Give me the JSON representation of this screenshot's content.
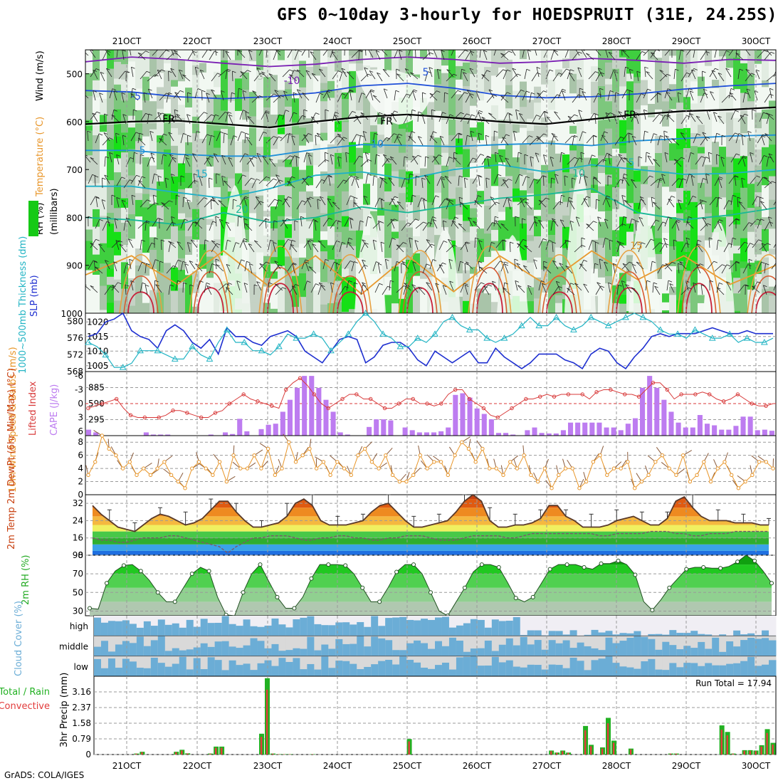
{
  "title": "GFS 0~10day 3-hourly for HOEDSPRUIT (31E, 24.25S)",
  "footer": "GrADS: COLA/IGES",
  "colors": {
    "rh_green": "#16c916",
    "bright_green": "#00e600",
    "pale_green": "#e8f3e8",
    "grey_green": "#c3cfc3",
    "slp_line": "#1e2fd0",
    "thickness_line": "#22b4c4",
    "lifted_index": "#d83a3a",
    "cape_bar": "#bd7cf0",
    "wind_speed": "#e8962a",
    "cloud_blue": "#6badd6",
    "cloud_grey": "#d9d9d9",
    "cloud_pale": "#f0eef4",
    "precip_total": "#22b122",
    "precip_convective": "#e23b3b"
  },
  "chart_data": [
    {
      "type": "heatmap",
      "name": "upper_air_cross_section",
      "xlabels": [
        "21OCT",
        "22OCT",
        "23OCT",
        "24OCT",
        "25OCT",
        "26OCT",
        "27OCT",
        "28OCT",
        "29OCT",
        "30OCT"
      ],
      "ylabel": "(millibars)",
      "ylabels": [
        "500",
        "600",
        "700",
        "800",
        "900",
        "1000"
      ],
      "ylim": [
        450,
        1000
      ],
      "side_labels": [
        "RH (%)",
        "Temperature (°C)",
        "Wind (m/s)"
      ],
      "contour_labels": [
        "-10",
        "5",
        "-5",
        "5",
        "FR",
        "FR",
        "FR",
        "5",
        "10",
        "15",
        "10",
        "5",
        "20",
        "15"
      ],
      "isotherms": [
        {
          "label": "-10",
          "color": "#7a1fb3",
          "p": [
            475,
            465,
            470,
            478,
            485,
            480,
            470,
            465,
            470,
            478,
            475,
            468,
            472,
            478,
            470,
            472
          ]
        },
        {
          "label": "-5",
          "color": "#1f4fd8",
          "p": [
            535,
            538,
            548,
            552,
            548,
            540,
            525,
            520,
            530,
            545,
            550,
            548,
            542,
            532,
            525,
            520
          ]
        },
        {
          "label": "FR",
          "color": "#000000",
          "p": [
            605,
            600,
            598,
            605,
            612,
            600,
            590,
            585,
            592,
            600,
            605,
            595,
            585,
            578,
            575,
            570
          ]
        },
        {
          "label": "5",
          "color": "#1e8fd8",
          "p": [
            660,
            660,
            668,
            672,
            672,
            658,
            648,
            650,
            652,
            648,
            645,
            650,
            640,
            635,
            630,
            628
          ]
        },
        {
          "label": "10",
          "color": "#1eb0c8",
          "p": [
            735,
            735,
            748,
            760,
            740,
            712,
            705,
            720,
            700,
            690,
            705,
            690,
            700,
            710,
            708,
            700
          ]
        },
        {
          "label": "15",
          "color": "#18b896",
          "p": [
            800,
            805,
            815,
            790,
            810,
            800,
            778,
            790,
            775,
            760,
            752,
            740,
            790,
            805,
            795,
            780
          ]
        },
        {
          "label": "20",
          "color": "#e89a30",
          "p": [
            920,
            880,
            940,
            870,
            945,
            880,
            960,
            880,
            955,
            880,
            940,
            870,
            930,
            880,
            940,
            900
          ]
        }
      ]
    },
    {
      "type": "line",
      "name": "slp_and_thickness",
      "y_left_label": "1000~500mb Thickness (dm)",
      "y_left_ticks": [
        "568",
        "572",
        "576",
        "580"
      ],
      "y_left_range": [
        568,
        582
      ],
      "y_right_label": "SLP (mb)",
      "y_right_ticks": [
        "1005",
        "1010",
        "1015",
        "1020"
      ],
      "y_right_range": [
        1003,
        1023
      ],
      "series": [
        {
          "name": "SLP (mb)",
          "values": [
            1015,
            1016,
            1020,
            1021,
            1023,
            1017,
            1015,
            1014,
            1011,
            1017,
            1019,
            1017,
            1013,
            1011,
            1014,
            1009,
            1018,
            1015,
            1015,
            1013,
            1012,
            1015,
            1016,
            1017,
            1015,
            1010,
            1008,
            1006,
            1010,
            1014,
            1015,
            1014,
            1006,
            1008,
            1012,
            1013,
            1013,
            1011,
            1007,
            1005,
            1010,
            1008,
            1006,
            1008,
            1010,
            1006,
            1006,
            1011,
            1008,
            1006,
            1004,
            1006,
            1009,
            1009,
            1009,
            1007,
            1006,
            1004,
            1009,
            1011,
            1010,
            1006,
            1004,
            1008,
            1011,
            1015,
            1016,
            1015,
            1016,
            1016,
            1016,
            1017,
            1018,
            1017,
            1016,
            1016,
            1017,
            1016,
            1016,
            1016
          ]
        },
        {
          "name": "1000~500mb Thickness (dm)",
          "values": [
            575,
            574,
            572,
            569,
            569,
            570,
            573,
            573,
            573,
            572,
            571,
            571,
            574,
            572,
            571,
            575,
            578,
            575,
            575,
            573,
            573,
            572,
            574,
            577,
            576,
            576,
            577,
            576,
            573,
            575,
            577,
            580,
            582,
            580,
            577,
            576,
            574,
            574,
            576,
            575,
            577,
            580,
            581,
            579,
            578,
            578,
            576,
            575,
            576,
            577,
            579,
            581,
            579,
            579,
            581,
            579,
            578,
            579,
            581,
            580,
            579,
            580,
            581,
            582,
            581,
            580,
            578,
            577,
            577,
            576,
            578,
            577,
            576,
            576,
            577,
            575,
            576,
            575,
            575,
            576
          ]
        }
      ]
    },
    {
      "type": "bar",
      "name": "cape_and_lifted_index",
      "y_left_label": "Lifted Index",
      "y_left_ticks": [
        "-6",
        "-3",
        "0",
        "3",
        "6"
      ],
      "y_right_label": "CAPE (J/kg)",
      "y_right_ticks": [
        "295",
        "590",
        "885"
      ],
      "y_right_range": [
        0,
        1180
      ],
      "cape": [
        110,
        60,
        0,
        0,
        0,
        0,
        0,
        0,
        60,
        20,
        20,
        20,
        0,
        0,
        0,
        0,
        0,
        20,
        0,
        60,
        30,
        310,
        80,
        0,
        120,
        200,
        220,
        440,
        660,
        880,
        1100,
        1100,
        880,
        660,
        440,
        60,
        20,
        0,
        0,
        160,
        300,
        300,
        280,
        0,
        150,
        100,
        60,
        60,
        60,
        80,
        150,
        750,
        780,
        700,
        500,
        400,
        300,
        50,
        50,
        20,
        0,
        100,
        150,
        50,
        40,
        40,
        100,
        240,
        240,
        240,
        240,
        240,
        150,
        150,
        100,
        220,
        320,
        880,
        1100,
        880,
        660,
        440,
        240,
        150,
        150,
        380,
        220,
        190,
        110,
        110,
        180,
        350,
        350,
        100,
        110,
        90
      ]
    },
    {
      "type": "line",
      "name": "10m_wind",
      "ylabel": "10m Wind Speed & Barbs (m/s)",
      "ylim": [
        0,
        9
      ],
      "y_ticks": [
        "0",
        "2",
        "4",
        "6",
        "8"
      ],
      "values": [
        3,
        5,
        9,
        7,
        6,
        4,
        5,
        3,
        4,
        3,
        4,
        5,
        3,
        2,
        1,
        4,
        5,
        4,
        3,
        5,
        2,
        6,
        4,
        4,
        6,
        4,
        7,
        3,
        4,
        8,
        5,
        6,
        7,
        4,
        5,
        3,
        5,
        4,
        3,
        6,
        7,
        5,
        4,
        6,
        3,
        2,
        2,
        3,
        6,
        4,
        5,
        5,
        3,
        6,
        8,
        7,
        5,
        7,
        4,
        4,
        3,
        5,
        4,
        6,
        3,
        2,
        4,
        1,
        3,
        4,
        4,
        1,
        2,
        5,
        6,
        3,
        4,
        4,
        5,
        1,
        2,
        3,
        5,
        6,
        4,
        3,
        6,
        2,
        3,
        5,
        2,
        4,
        5,
        3,
        1,
        2,
        3,
        5,
        5,
        4
      ]
    },
    {
      "type": "area",
      "name": "2m_temperature",
      "ylabel": "2m Temp 2m DewPt (6hr Min/Max) (°C)",
      "ylim": [
        8,
        36
      ],
      "y_ticks": [
        "8",
        "16",
        "24",
        "32"
      ],
      "series": [
        {
          "name": "2m Temp",
          "values": [
            31,
            27,
            24,
            21,
            20,
            19,
            22,
            25,
            27,
            26,
            24,
            22,
            23,
            25,
            29,
            33,
            33,
            28,
            24,
            21,
            21,
            22,
            23,
            26,
            32,
            34,
            31,
            24,
            22,
            22,
            22,
            23,
            24,
            28,
            31,
            32,
            28,
            24,
            21,
            21,
            22,
            23,
            24,
            28,
            33,
            36,
            33,
            24,
            21,
            21,
            22,
            22,
            23,
            25,
            31,
            31,
            26,
            24,
            21,
            21,
            21,
            22,
            24,
            25,
            26,
            24,
            22,
            22,
            25,
            33,
            35,
            30,
            26,
            24,
            24,
            24,
            23,
            23,
            23,
            22,
            22
          ]
        },
        {
          "name": "2m DewPt",
          "values": [
            16,
            15,
            15,
            14,
            14,
            15,
            16,
            16,
            16,
            17,
            17,
            16,
            15,
            14,
            13,
            12,
            9,
            12,
            14,
            16,
            16,
            17,
            17,
            17,
            16,
            15,
            15,
            16,
            16,
            17,
            17,
            16,
            16,
            15,
            15,
            16,
            16,
            17,
            17,
            17,
            16,
            15,
            15,
            15,
            16,
            17,
            17,
            17,
            17,
            16,
            16,
            17,
            18,
            18,
            18,
            18,
            18,
            18,
            18,
            18,
            17,
            17,
            18,
            18,
            18,
            18,
            19,
            19,
            19,
            18,
            18,
            17,
            17,
            18,
            18,
            18,
            19,
            19,
            19,
            19,
            19
          ]
        }
      ]
    },
    {
      "type": "area",
      "name": "2m_rh",
      "ylabel": "2m RH (%)",
      "ylim": [
        25,
        90
      ],
      "y_ticks": [
        "30",
        "50",
        "70",
        "90"
      ],
      "values": [
        33,
        32,
        60,
        73,
        79,
        80,
        73,
        63,
        50,
        40,
        40,
        55,
        70,
        77,
        73,
        45,
        26,
        25,
        50,
        70,
        80,
        62,
        45,
        33,
        33,
        45,
        65,
        80,
        80,
        80,
        79,
        70,
        55,
        40,
        40,
        55,
        72,
        80,
        80,
        70,
        50,
        30,
        25,
        40,
        55,
        72,
        80,
        80,
        77,
        61,
        44,
        40,
        45,
        60,
        75,
        80,
        80,
        80,
        77,
        75,
        81,
        81,
        84,
        80,
        69,
        40,
        31,
        42,
        55,
        65,
        75,
        77,
        77,
        76,
        76,
        78,
        83,
        90,
        84,
        73,
        60
      ]
    },
    {
      "type": "heatmap",
      "name": "cloud_cover",
      "ylabel": "Cloud Cover (%)",
      "y_ticks": [
        "high",
        "middle",
        "low"
      ]
    },
    {
      "type": "bar",
      "name": "3hr_precip",
      "ylabel": "3hr Precip (mm)",
      "side_labels": [
        "Total / Rain",
        "Convective"
      ],
      "annotation": "Run Total = 17.94",
      "ylim": [
        0,
        3.95
      ],
      "y_ticks": [
        "0",
        "0.79",
        "1.58",
        "2.37",
        "3.16"
      ],
      "total": [
        0,
        0,
        0,
        0,
        0,
        0,
        0,
        0.05,
        0.14,
        0,
        0,
        0,
        0,
        0,
        0.14,
        0.24,
        0.06,
        0,
        0,
        0,
        0.05,
        0.4,
        0.4,
        0,
        0,
        0,
        0,
        0,
        0,
        1.05,
        3.85,
        0.05,
        0.02,
        0.02,
        0.02,
        0,
        0,
        0,
        0.02,
        0,
        0,
        0,
        0,
        0,
        0,
        0,
        0,
        0,
        0,
        0,
        0,
        0,
        0,
        0,
        0,
        0.78,
        0,
        0,
        0,
        0,
        0,
        0,
        0,
        0,
        0,
        0,
        0,
        0,
        0,
        0,
        0,
        0,
        0,
        0,
        0,
        0,
        0,
        0,
        0,
        0,
        0.2,
        0.1,
        0.2,
        0.1,
        0,
        0,
        1.44,
        0.49,
        0,
        0.36,
        1.85,
        0.7,
        0,
        0,
        0.3,
        0,
        0,
        0,
        0,
        0,
        0,
        0.05,
        0.05,
        0,
        0,
        0,
        0,
        0,
        0,
        0,
        1.47,
        1.14,
        0.05,
        0,
        0.22,
        0.22,
        0.2,
        0.47,
        1.28,
        0.59
      ]
    }
  ]
}
